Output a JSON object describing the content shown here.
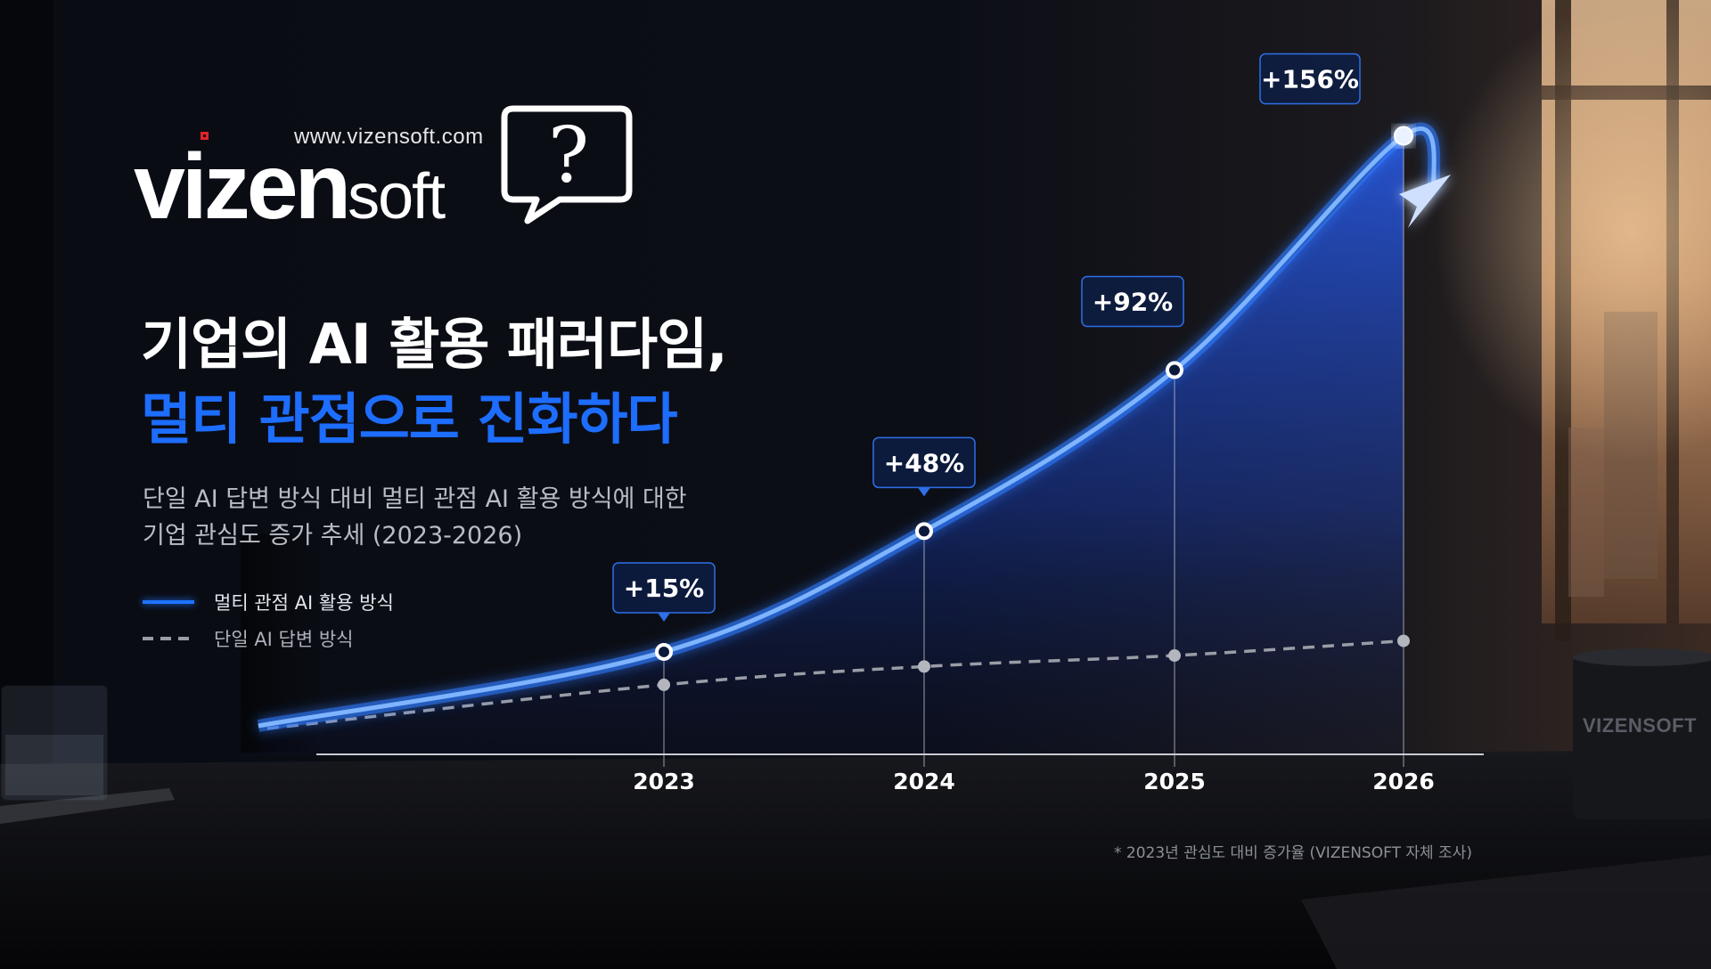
{
  "brand": {
    "url": "www.vizensoft.com",
    "wordmark_bold": "vizen",
    "wordmark_light": "soft",
    "bubble_glyph": "?",
    "cup_label": "VIZENSOFT"
  },
  "heading": {
    "line1": "기업의 AI 활용 패러다임,",
    "line2": "멀티 관점으로 진화하다"
  },
  "subtitle": {
    "line1": "단일 AI 답변 방식 대비 멀티 관점 AI 활용 방식에 대한",
    "line2": "기업 관심도 증가 추세 (2023-2026)"
  },
  "colors": {
    "accent": "#1d6dff",
    "series_multi": "#3d8bff",
    "series_single": "#9a9da6",
    "background": "#07080d"
  },
  "chart_data": {
    "type": "line",
    "title": "",
    "xlabel": "",
    "ylabel": "",
    "categories": [
      "2023",
      "2024",
      "2025",
      "2026"
    ],
    "series": [
      {
        "name": "멀티 관점 AI 활용 방식",
        "values": [
          15,
          48,
          92,
          156
        ],
        "labels": [
          "+15%",
          "+48%",
          "+92%",
          "+156%"
        ],
        "style": "solid-glow-area",
        "color": "#3d8bff"
      },
      {
        "name": "단일 AI 답변 방식",
        "values": [
          6,
          11,
          14,
          18
        ],
        "style": "dashed",
        "color": "#9a9da6"
      }
    ],
    "ylim": [
      -13,
      170
    ],
    "grid": false,
    "legend_position": "left",
    "trend_arrow": true
  },
  "footnote": "* 2023년 관심도 대비 증가율 (VIZENSOFT 자체 조사)"
}
